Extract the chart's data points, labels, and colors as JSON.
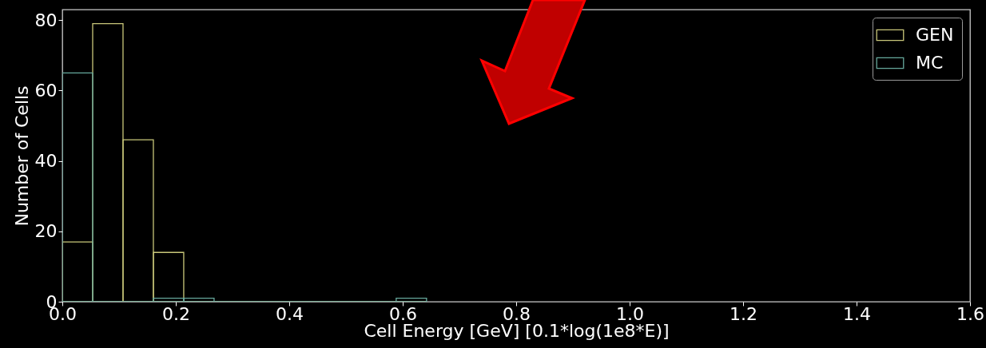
{
  "chart_data": {
    "type": "histogram",
    "xlabel": "Cell Energy [GeV] [0.1*log(1e8*E)]",
    "ylabel": "Number of Cells",
    "bins": [
      0,
      0.0535,
      0.107,
      0.1605,
      0.214,
      0.2675,
      0.321,
      0.3745,
      0.428,
      0.4815,
      0.535,
      0.5885,
      0.642
    ],
    "series": [
      {
        "name": "GEN",
        "color": "#c9c77a",
        "values": [
          17,
          79,
          46,
          14,
          0,
          0,
          0,
          0,
          0,
          0,
          0,
          0
        ]
      },
      {
        "name": "MC",
        "color": "#66a89c",
        "values": [
          65,
          0,
          0,
          1,
          1,
          0,
          0,
          0,
          0,
          0,
          0,
          1
        ]
      }
    ],
    "xlim": [
      0,
      1.6
    ],
    "xticks": [
      {
        "value": 0,
        "label": "0.0"
      },
      0.2,
      0.4,
      0.6,
      0.8,
      {
        "value": 1,
        "label": "1.0"
      },
      1.2,
      1.4,
      1.6
    ],
    "ylim": [
      0,
      83
    ],
    "yticks": [
      0,
      20,
      40,
      60,
      80
    ],
    "legend": "top right",
    "grid": false
  }
}
